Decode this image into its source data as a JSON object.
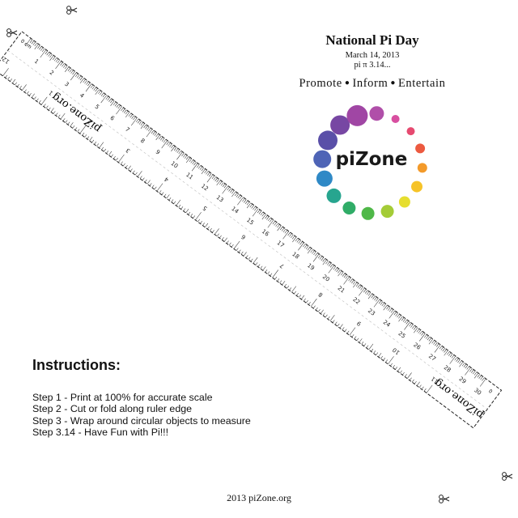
{
  "header": {
    "title": "National Pi Day",
    "date": "March 14, 2013",
    "pi_line": "pi π 3.14..."
  },
  "tagline": {
    "words": [
      "Promote",
      "Inform",
      "Entertain"
    ]
  },
  "logo": {
    "text": "piZone",
    "dot_colors": [
      "#b04fa9",
      "#d84fa0",
      "#e64a70",
      "#ec5a40",
      "#f39a2a",
      "#f6c328",
      "#e6de2f",
      "#a4cc37",
      "#4fb848",
      "#30ac67",
      "#27a58f",
      "#2f89c6",
      "#4e64b6",
      "#5a4fa8",
      "#7747a3",
      "#a046a4"
    ]
  },
  "ruler": {
    "brand": "piZone.org",
    "units_start_label": "0 cm",
    "inch_end_label": "12",
    "cm_labels": [
      "1",
      "2",
      "3",
      "4",
      "5",
      "6",
      "7",
      "8",
      "9",
      "10",
      "11",
      "12",
      "13",
      "14",
      "15",
      "16",
      "17",
      "18",
      "19",
      "20",
      "21",
      "22",
      "23",
      "24",
      "25",
      "26",
      "27",
      "28",
      "29",
      "30"
    ],
    "inch_labels": [
      "1",
      "2",
      "3",
      "4",
      "5",
      "6",
      "7",
      "8",
      "9",
      "10",
      "11"
    ],
    "end_label": "0"
  },
  "instructions": {
    "heading": "Instructions:",
    "steps": [
      "Step 1 - Print at 100% for accurate scale",
      "Step 2 - Cut or fold along ruler edge",
      "Step 3 - Wrap around circular objects to measure",
      "Step 3.14 - Have Fun with Pi!!!"
    ]
  },
  "footer": {
    "text": "2013  piZone.org"
  }
}
